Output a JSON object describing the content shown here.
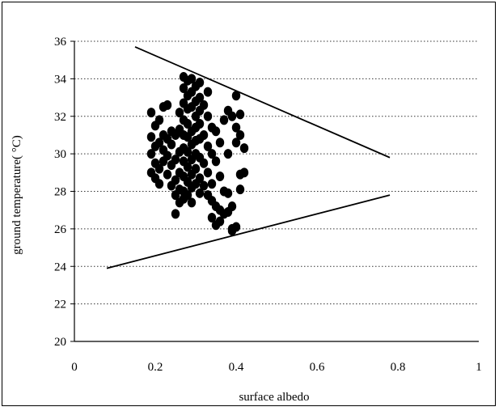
{
  "chart_data": {
    "type": "scatter",
    "title": "",
    "xlabel": "surface albedo",
    "ylabel": "ground temperature( °C)",
    "xlim": [
      0,
      1
    ],
    "ylim": [
      20,
      36
    ],
    "x_ticks": [
      0,
      0.2,
      0.4,
      0.6,
      0.8,
      1
    ],
    "y_ticks": [
      20,
      22,
      24,
      26,
      28,
      30,
      32,
      34,
      36
    ],
    "x_tick_labels": [
      "0",
      "0.2",
      "0.4",
      "0.6",
      "0.8",
      "1"
    ],
    "y_tick_labels": [
      "20",
      "22",
      "24",
      "26",
      "28",
      "30",
      "32",
      "34",
      "36"
    ],
    "grid": "horizontal dotted",
    "legend": "none",
    "marker_color": "#000000",
    "series": [
      {
        "points": [
          [
            0.19,
            32.2
          ],
          [
            0.2,
            31.5
          ],
          [
            0.19,
            30.9
          ],
          [
            0.2,
            30.4
          ],
          [
            0.19,
            30.0
          ],
          [
            0.2,
            29.5
          ],
          [
            0.19,
            29.0
          ],
          [
            0.2,
            28.7
          ],
          [
            0.21,
            28.4
          ],
          [
            0.21,
            29.2
          ],
          [
            0.21,
            30.6
          ],
          [
            0.21,
            31.8
          ],
          [
            0.22,
            32.5
          ],
          [
            0.22,
            31.0
          ],
          [
            0.22,
            30.2
          ],
          [
            0.22,
            29.6
          ],
          [
            0.23,
            28.9
          ],
          [
            0.23,
            30.8
          ],
          [
            0.23,
            32.6
          ],
          [
            0.23,
            29.9
          ],
          [
            0.24,
            31.2
          ],
          [
            0.24,
            28.3
          ],
          [
            0.24,
            29.4
          ],
          [
            0.24,
            30.5
          ],
          [
            0.25,
            27.8
          ],
          [
            0.25,
            28.6
          ],
          [
            0.25,
            29.7
          ],
          [
            0.25,
            31.0
          ],
          [
            0.25,
            26.8
          ],
          [
            0.26,
            27.4
          ],
          [
            0.26,
            28.1
          ],
          [
            0.26,
            29.0
          ],
          [
            0.26,
            30.1
          ],
          [
            0.26,
            31.3
          ],
          [
            0.26,
            32.2
          ],
          [
            0.27,
            34.1
          ],
          [
            0.27,
            33.5
          ],
          [
            0.27,
            32.7
          ],
          [
            0.27,
            31.8
          ],
          [
            0.27,
            31.0
          ],
          [
            0.27,
            30.3
          ],
          [
            0.27,
            29.6
          ],
          [
            0.27,
            28.8
          ],
          [
            0.27,
            28.0
          ],
          [
            0.27,
            27.6
          ],
          [
            0.28,
            33.9
          ],
          [
            0.28,
            33.1
          ],
          [
            0.28,
            32.4
          ],
          [
            0.28,
            31.6
          ],
          [
            0.28,
            30.9
          ],
          [
            0.28,
            30.1
          ],
          [
            0.28,
            29.3
          ],
          [
            0.28,
            28.5
          ],
          [
            0.28,
            27.8
          ],
          [
            0.29,
            34.0
          ],
          [
            0.29,
            33.3
          ],
          [
            0.29,
            32.5
          ],
          [
            0.29,
            31.2
          ],
          [
            0.29,
            30.5
          ],
          [
            0.29,
            29.7
          ],
          [
            0.29,
            28.9
          ],
          [
            0.29,
            28.2
          ],
          [
            0.29,
            27.4
          ],
          [
            0.3,
            33.6
          ],
          [
            0.3,
            32.8
          ],
          [
            0.3,
            32.0
          ],
          [
            0.3,
            31.4
          ],
          [
            0.3,
            30.7
          ],
          [
            0.3,
            30.0
          ],
          [
            0.3,
            29.2
          ],
          [
            0.3,
            28.4
          ],
          [
            0.31,
            33.8
          ],
          [
            0.31,
            33.0
          ],
          [
            0.31,
            32.3
          ],
          [
            0.31,
            31.6
          ],
          [
            0.31,
            30.8
          ],
          [
            0.31,
            29.8
          ],
          [
            0.31,
            28.7
          ],
          [
            0.31,
            27.9
          ],
          [
            0.32,
            32.6
          ],
          [
            0.32,
            31.0
          ],
          [
            0.32,
            29.5
          ],
          [
            0.32,
            28.3
          ],
          [
            0.33,
            33.3
          ],
          [
            0.33,
            32.0
          ],
          [
            0.33,
            30.4
          ],
          [
            0.33,
            29.0
          ],
          [
            0.33,
            27.8
          ],
          [
            0.34,
            31.4
          ],
          [
            0.34,
            30.0
          ],
          [
            0.34,
            28.4
          ],
          [
            0.34,
            27.5
          ],
          [
            0.34,
            26.6
          ],
          [
            0.35,
            31.2
          ],
          [
            0.35,
            29.6
          ],
          [
            0.35,
            27.2
          ],
          [
            0.35,
            26.2
          ],
          [
            0.36,
            30.6
          ],
          [
            0.36,
            28.8
          ],
          [
            0.36,
            27.0
          ],
          [
            0.36,
            26.4
          ],
          [
            0.37,
            31.8
          ],
          [
            0.37,
            28.0
          ],
          [
            0.37,
            26.8
          ],
          [
            0.38,
            32.3
          ],
          [
            0.38,
            30.0
          ],
          [
            0.38,
            27.9
          ],
          [
            0.38,
            26.9
          ],
          [
            0.39,
            32.0
          ],
          [
            0.39,
            26.0
          ],
          [
            0.39,
            25.9
          ],
          [
            0.39,
            27.2
          ],
          [
            0.4,
            33.1
          ],
          [
            0.4,
            31.4
          ],
          [
            0.4,
            30.6
          ],
          [
            0.4,
            26.1
          ],
          [
            0.41,
            32.1
          ],
          [
            0.41,
            31.0
          ],
          [
            0.41,
            28.9
          ],
          [
            0.41,
            28.1
          ],
          [
            0.42,
            30.3
          ],
          [
            0.42,
            29.0
          ]
        ]
      }
    ],
    "envelope_lines": [
      {
        "x": [
          0.15,
          0.78
        ],
        "y": [
          35.7,
          29.8
        ]
      },
      {
        "x": [
          0.08,
          0.78
        ],
        "y": [
          23.9,
          27.8
        ]
      }
    ]
  }
}
